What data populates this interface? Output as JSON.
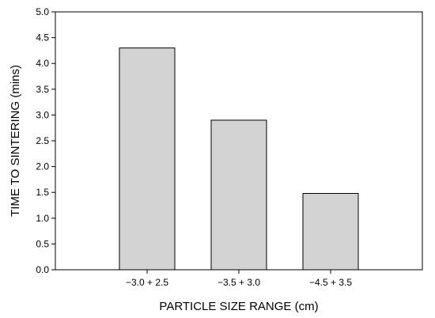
{
  "chart_data": {
    "type": "bar",
    "title": "",
    "xlabel": "PARTICLE SIZE RANGE (cm)",
    "ylabel": "TIME TO SINTERING (mins)",
    "categories": [
      "−3.0 + 2.5",
      "−3.5 + 3.0",
      "−4.5 + 3.5"
    ],
    "values": [
      4.3,
      2.9,
      1.48
    ],
    "ylim": [
      0,
      5.0
    ],
    "yticks": [
      "0.0",
      "0.5",
      "1.0",
      "1.5",
      "2.0",
      "2.5",
      "3.0",
      "3.5",
      "4.0",
      "4.5",
      "5.0"
    ],
    "grid": false,
    "legend": "none",
    "bar_color": "#d3d3d3",
    "edge_color": "#000000"
  }
}
